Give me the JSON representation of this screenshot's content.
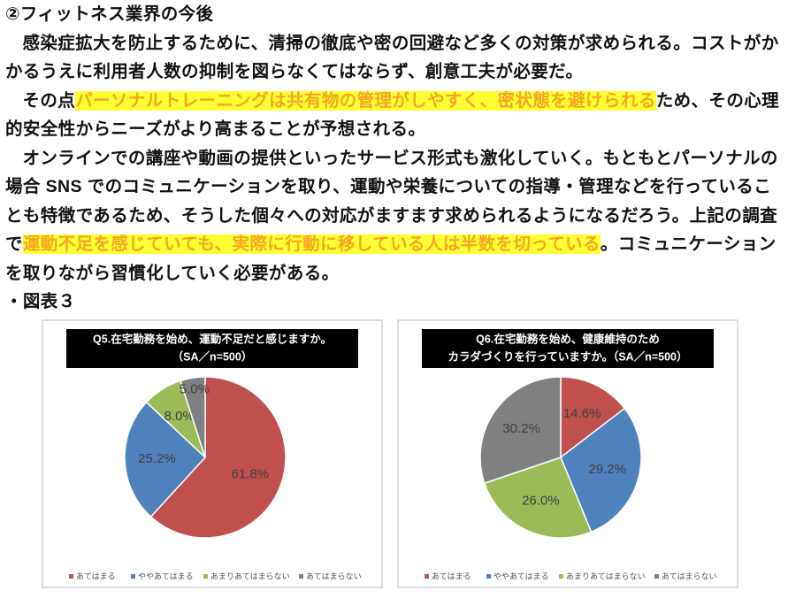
{
  "heading": "②フィットネス業界の今後",
  "paragraphs": [
    [
      {
        "text": "感染症拡大を防止するために、清掃の徹底や密の回避など多くの対策が求められる。コストがかかるうえに利用者人数の抑制を図らなくてはならず、創意工夫が必要だ。",
        "highlight": false
      }
    ],
    [
      {
        "text": "その点",
        "highlight": false
      },
      {
        "text": "パーソナルトレーニングは共有物の管理がしやすく、密状態を避けられる",
        "highlight": true
      },
      {
        "text": "ため、その心理的安全性からニーズがより高まることが予想される。",
        "highlight": false
      }
    ],
    [
      {
        "text": "オンラインでの講座や動画の提供といったサービス形式も激化していく。もともとパーソナルの場合 SNS でのコミュニケーションを取り、運動や栄養についての指導・管理などを行っていることも特徴であるため、そうした個々への対応がますます求められるようになるだろう。上記の調査で",
        "highlight": false
      },
      {
        "text": "運動不足を感じていても、実際に行動に移している人は半数を切っている",
        "highlight": true
      },
      {
        "text": "。コミュニケーションを取りながら習慣化していく必要がある。",
        "highlight": false
      }
    ]
  ],
  "figure_caption": "・図表３",
  "chart_data": [
    {
      "type": "pie",
      "title": [
        "Q5.在宅勤務を始め、運動不足だと感じますか。",
        "（SA／n=500）"
      ],
      "categories": [
        "あてはまる",
        "ややあてはまる",
        "あまりあてはまらない",
        "あてはまらない"
      ],
      "values": [
        61.8,
        25.2,
        8.0,
        5.0
      ],
      "value_labels": [
        "61.8%",
        "25.2%",
        "8.0%",
        "5.0%"
      ],
      "colors": [
        "#c0504d",
        "#4f81bd",
        "#9bbb59",
        "#808080"
      ]
    },
    {
      "type": "pie",
      "title": [
        "Q6.在宅勤務を始め、健康維持のため",
        "カラダづくりを行っていますか。（SA／n=500）"
      ],
      "categories": [
        "あてはまる",
        "ややあてはまる",
        "あまりあてはまらない",
        "あてはまらない"
      ],
      "values": [
        14.6,
        29.2,
        26.0,
        30.2
      ],
      "value_labels": [
        "14.6%",
        "29.2%",
        "26.0%",
        "30.2%"
      ],
      "colors": [
        "#c0504d",
        "#4f81bd",
        "#9bbb59",
        "#808080"
      ]
    }
  ]
}
